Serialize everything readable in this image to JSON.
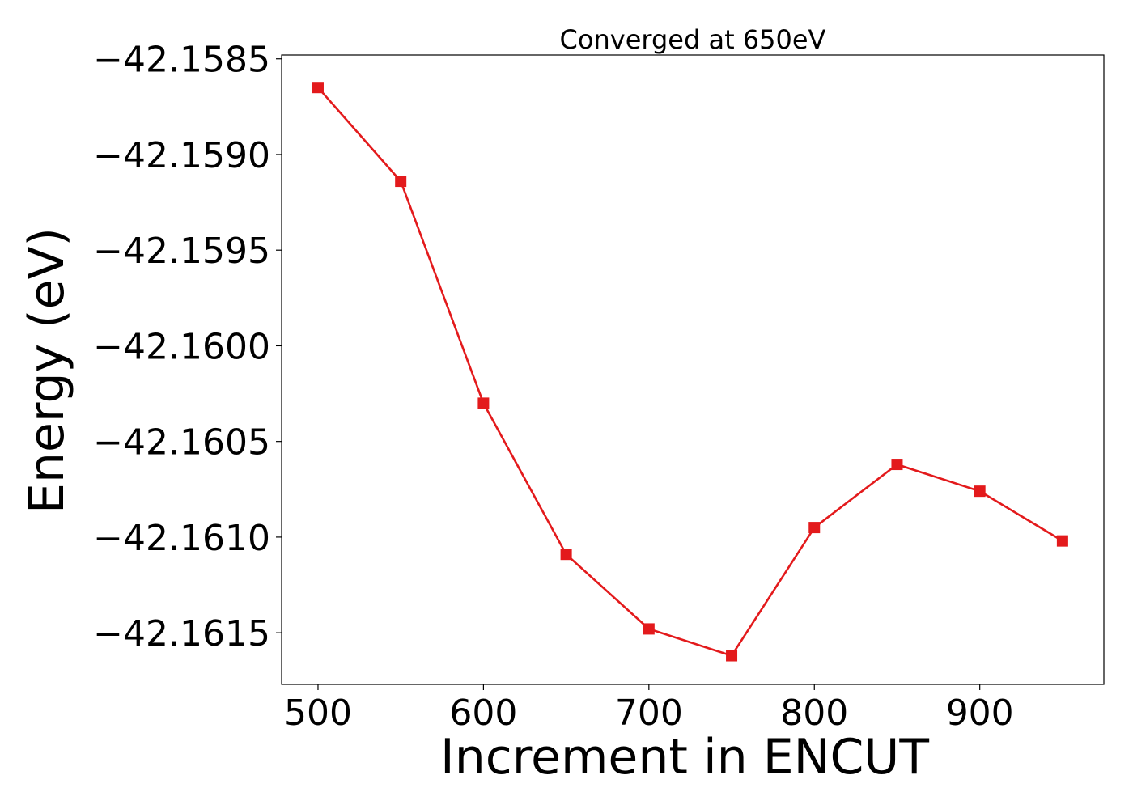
{
  "chart_data": {
    "type": "line",
    "title": "Converged at 650eV",
    "xlabel": "Increment in ENCUT",
    "ylabel": "Energy (eV)",
    "x": [
      500,
      550,
      600,
      650,
      700,
      750,
      800,
      850,
      900,
      950
    ],
    "series": [
      {
        "values": [
          -42.15865,
          -42.15914,
          -42.1603,
          -42.16109,
          -42.16148,
          -42.16162,
          -42.16095,
          -42.16062,
          -42.16076,
          -42.16102
        ],
        "color": "#e31a1c",
        "marker": "square"
      }
    ],
    "xlim": [
      478,
      975
    ],
    "ylim": [
      -42.16177,
      -42.15848
    ],
    "xticks": [
      500,
      600,
      700,
      800,
      900
    ],
    "xtick_labels": [
      "500",
      "600",
      "700",
      "800",
      "900"
    ],
    "yticks": [
      -42.1585,
      -42.159,
      -42.1595,
      -42.16,
      -42.1605,
      -42.161,
      -42.1615
    ],
    "ytick_labels": [
      "−42.1585",
      "−42.1590",
      "−42.1595",
      "−42.1600",
      "−42.1605",
      "−42.1610",
      "−42.1615"
    ],
    "grid": false,
    "legend": "none"
  }
}
